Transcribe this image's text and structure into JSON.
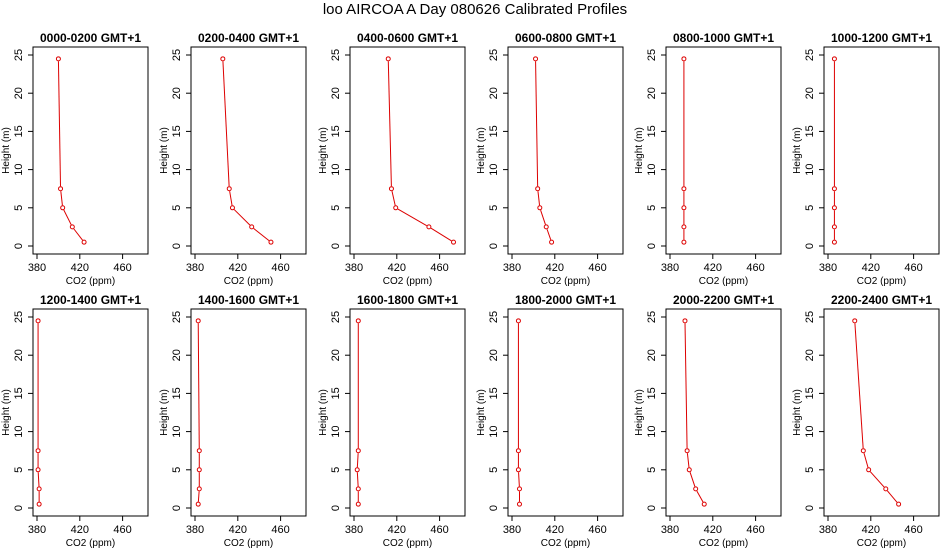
{
  "title": "loo AIRCOA A  Day 080626  Calibrated Profiles",
  "colors": {
    "series": "#dd0000",
    "axes": "#000000",
    "background": "#ffffff"
  },
  "chart_data": [
    {
      "type": "line",
      "title": "0000-0200 GMT+1",
      "xlabel": "CO2 (ppm)",
      "ylabel": "Height (m)",
      "xlim": [
        380,
        480
      ],
      "ylim": [
        0,
        25
      ],
      "xticks": [
        380,
        420,
        460
      ],
      "yticks": [
        0,
        5,
        10,
        15,
        20,
        25
      ],
      "points": [
        {
          "x": 424,
          "y": 0.5
        },
        {
          "x": 413,
          "y": 2.5
        },
        {
          "x": 404,
          "y": 5
        },
        {
          "x": 402,
          "y": 7.5
        },
        {
          "x": 400,
          "y": 24.5
        }
      ]
    },
    {
      "type": "line",
      "title": "0200-0400 GMT+1",
      "xlabel": "CO2 (ppm)",
      "ylabel": "Height (m)",
      "xlim": [
        380,
        480
      ],
      "ylim": [
        0,
        25
      ],
      "xticks": [
        380,
        420,
        460
      ],
      "yticks": [
        0,
        5,
        10,
        15,
        20,
        25
      ],
      "points": [
        {
          "x": 451,
          "y": 0.5
        },
        {
          "x": 433,
          "y": 2.5
        },
        {
          "x": 415,
          "y": 5
        },
        {
          "x": 412,
          "y": 7.5
        },
        {
          "x": 406,
          "y": 24.5
        }
      ]
    },
    {
      "type": "line",
      "title": "0400-0600 GMT+1",
      "xlabel": "CO2 (ppm)",
      "ylabel": "Height (m)",
      "xlim": [
        380,
        480
      ],
      "ylim": [
        0,
        25
      ],
      "xticks": [
        380,
        420,
        460
      ],
      "yticks": [
        0,
        5,
        10,
        15,
        20,
        25
      ],
      "points": [
        {
          "x": 473,
          "y": 0.5
        },
        {
          "x": 450,
          "y": 2.5
        },
        {
          "x": 419,
          "y": 5
        },
        {
          "x": 415,
          "y": 7.5
        },
        {
          "x": 412,
          "y": 24.5
        }
      ]
    },
    {
      "type": "line",
      "title": "0600-0800 GMT+1",
      "xlabel": "CO2 (ppm)",
      "ylabel": "Height (m)",
      "xlim": [
        380,
        480
      ],
      "ylim": [
        0,
        25
      ],
      "xticks": [
        380,
        420,
        460
      ],
      "yticks": [
        0,
        5,
        10,
        15,
        20,
        25
      ],
      "points": [
        {
          "x": 417,
          "y": 0.5
        },
        {
          "x": 412,
          "y": 2.5
        },
        {
          "x": 406,
          "y": 5
        },
        {
          "x": 404,
          "y": 7.5
        },
        {
          "x": 402,
          "y": 24.5
        }
      ]
    },
    {
      "type": "line",
      "title": "0800-1000 GMT+1",
      "xlabel": "CO2 (ppm)",
      "ylabel": "Height (m)",
      "xlim": [
        380,
        480
      ],
      "ylim": [
        0,
        25
      ],
      "xticks": [
        380,
        420,
        460
      ],
      "yticks": [
        0,
        5,
        10,
        15,
        20,
        25
      ],
      "points": [
        {
          "x": 393,
          "y": 0.5
        },
        {
          "x": 393,
          "y": 2.5
        },
        {
          "x": 393,
          "y": 5
        },
        {
          "x": 393,
          "y": 7.5
        },
        {
          "x": 393,
          "y": 24.5
        }
      ]
    },
    {
      "type": "line",
      "title": "1000-1200 GMT+1",
      "xlabel": "CO2 (ppm)",
      "ylabel": "Height (m)",
      "xlim": [
        380,
        480
      ],
      "ylim": [
        0,
        25
      ],
      "xticks": [
        380,
        420,
        460
      ],
      "yticks": [
        0,
        5,
        10,
        15,
        20,
        25
      ],
      "points": [
        {
          "x": 386,
          "y": 0.5
        },
        {
          "x": 386,
          "y": 2.5
        },
        {
          "x": 386,
          "y": 5
        },
        {
          "x": 386,
          "y": 7.5
        },
        {
          "x": 386,
          "y": 24.5
        }
      ]
    },
    {
      "type": "line",
      "title": "1200-1400 GMT+1",
      "xlabel": "CO2 (ppm)",
      "ylabel": "Height (m)",
      "xlim": [
        380,
        480
      ],
      "ylim": [
        0,
        25
      ],
      "xticks": [
        380,
        420,
        460
      ],
      "yticks": [
        0,
        5,
        10,
        15,
        20,
        25
      ],
      "points": [
        {
          "x": 382,
          "y": 0.5
        },
        {
          "x": 382,
          "y": 2.5
        },
        {
          "x": 381,
          "y": 5
        },
        {
          "x": 381,
          "y": 7.5
        },
        {
          "x": 381,
          "y": 24.5
        }
      ]
    },
    {
      "type": "line",
      "title": "1400-1600 GMT+1",
      "xlabel": "CO2 (ppm)",
      "ylabel": "Height (m)",
      "xlim": [
        380,
        480
      ],
      "ylim": [
        0,
        25
      ],
      "xticks": [
        380,
        420,
        460
      ],
      "yticks": [
        0,
        5,
        10,
        15,
        20,
        25
      ],
      "points": [
        {
          "x": 383,
          "y": 0.5
        },
        {
          "x": 384,
          "y": 2.5
        },
        {
          "x": 384,
          "y": 5
        },
        {
          "x": 384,
          "y": 7.5
        },
        {
          "x": 383,
          "y": 24.5
        }
      ]
    },
    {
      "type": "line",
      "title": "1600-1800 GMT+1",
      "xlabel": "CO2 (ppm)",
      "ylabel": "Height (m)",
      "xlim": [
        380,
        480
      ],
      "ylim": [
        0,
        25
      ],
      "xticks": [
        380,
        420,
        460
      ],
      "yticks": [
        0,
        5,
        10,
        15,
        20,
        25
      ],
      "points": [
        {
          "x": 384,
          "y": 0.5
        },
        {
          "x": 384,
          "y": 2.5
        },
        {
          "x": 383,
          "y": 5
        },
        {
          "x": 384,
          "y": 7.5
        },
        {
          "x": 384,
          "y": 24.5
        }
      ]
    },
    {
      "type": "line",
      "title": "1800-2000 GMT+1",
      "xlabel": "CO2 (ppm)",
      "ylabel": "Height (m)",
      "xlim": [
        380,
        480
      ],
      "ylim": [
        0,
        25
      ],
      "xticks": [
        380,
        420,
        460
      ],
      "yticks": [
        0,
        5,
        10,
        15,
        20,
        25
      ],
      "points": [
        {
          "x": 387,
          "y": 0.5
        },
        {
          "x": 387,
          "y": 2.5
        },
        {
          "x": 386,
          "y": 5
        },
        {
          "x": 386,
          "y": 7.5
        },
        {
          "x": 386,
          "y": 24.5
        }
      ]
    },
    {
      "type": "line",
      "title": "2000-2200 GMT+1",
      "xlabel": "CO2 (ppm)",
      "ylabel": "Height (m)",
      "xlim": [
        380,
        480
      ],
      "ylim": [
        0,
        25
      ],
      "xticks": [
        380,
        420,
        460
      ],
      "yticks": [
        0,
        5,
        10,
        15,
        20,
        25
      ],
      "points": [
        {
          "x": 412,
          "y": 0.5
        },
        {
          "x": 404,
          "y": 2.5
        },
        {
          "x": 398,
          "y": 5
        },
        {
          "x": 396,
          "y": 7.5
        },
        {
          "x": 394,
          "y": 24.5
        }
      ]
    },
    {
      "type": "line",
      "title": "2200-2400 GMT+1",
      "xlabel": "CO2 (ppm)",
      "ylabel": "Height (m)",
      "xlim": [
        380,
        480
      ],
      "ylim": [
        0,
        25
      ],
      "xticks": [
        380,
        420,
        460
      ],
      "yticks": [
        0,
        5,
        10,
        15,
        20,
        25
      ],
      "points": [
        {
          "x": 446,
          "y": 0.5
        },
        {
          "x": 434,
          "y": 2.5
        },
        {
          "x": 418,
          "y": 5
        },
        {
          "x": 413,
          "y": 7.5
        },
        {
          "x": 405,
          "y": 24.5
        }
      ]
    }
  ]
}
